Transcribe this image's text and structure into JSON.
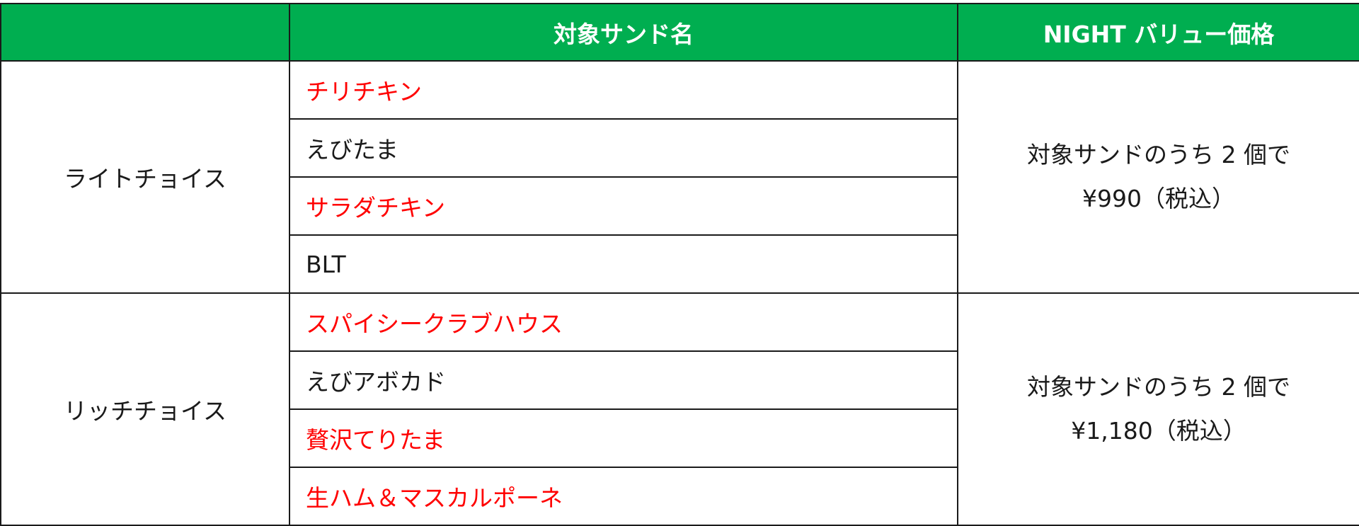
{
  "header": {
    "category": "",
    "item": "対象サンド名",
    "price": "NIGHT バリュー価格"
  },
  "colors": {
    "header_bg": "#00ae50",
    "highlight_text": "#ff0000"
  },
  "groups": [
    {
      "category": "ライトチョイス",
      "items": [
        {
          "name": "チリチキン",
          "highlight": true
        },
        {
          "name": "えびたま",
          "highlight": false
        },
        {
          "name": "サラダチキン",
          "highlight": true
        },
        {
          "name": "BLT",
          "highlight": false
        }
      ],
      "price_line1": "対象サンドのうち 2 個で",
      "price_line2": "¥990（税込）"
    },
    {
      "category": "リッチチョイス",
      "items": [
        {
          "name": "スパイシークラブハウス",
          "highlight": true
        },
        {
          "name": "えびアボカド",
          "highlight": false
        },
        {
          "name": "贅沢てりたま",
          "highlight": true
        },
        {
          "name": "生ハム＆マスカルポーネ",
          "highlight": true
        }
      ],
      "price_line1": "対象サンドのうち 2 個で",
      "price_line2": "¥1,180（税込）"
    }
  ]
}
